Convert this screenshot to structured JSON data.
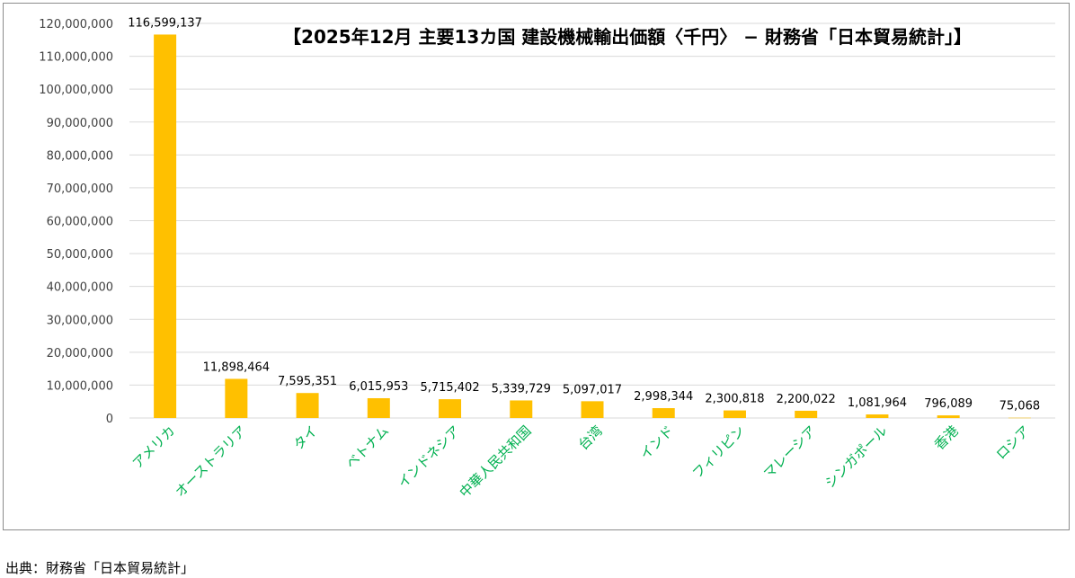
{
  "chart_data": {
    "type": "bar",
    "title": "【2025年12月 主要13カ国 建設機械輸出価額〈千円〉 − 財務省「日本貿易統計」】",
    "categories": [
      "アメリカ",
      "オーストラリア",
      "タイ",
      "ベトナム",
      "インドネシア",
      "中華人民共和国",
      "台湾",
      "インド",
      "フィリピン",
      "マレーシア",
      "シンガポール",
      "香港",
      "ロシア"
    ],
    "values": [
      116599137,
      11898464,
      7595351,
      6015953,
      5715402,
      5339729,
      5097017,
      2998344,
      2300818,
      2200022,
      1081964,
      796089,
      75068
    ],
    "value_labels": [
      "116,599,137",
      "11,898,464",
      "7,595,351",
      "6,015,953",
      "5,715,402",
      "5,339,729",
      "5,097,017",
      "2,998,344",
      "2,300,818",
      "2,200,022",
      "1,081,964",
      "796,089",
      "75,068"
    ],
    "ylim": [
      0,
      120000000
    ],
    "yticks": [
      0,
      10000000,
      20000000,
      30000000,
      40000000,
      50000000,
      60000000,
      70000000,
      80000000,
      90000000,
      100000000,
      110000000,
      120000000
    ],
    "ytick_labels": [
      "0",
      "10,000,000",
      "20,000,000",
      "30,000,000",
      "40,000,000",
      "50,000,000",
      "60,000,000",
      "70,000,000",
      "80,000,000",
      "90,000,000",
      "100,000,000",
      "110,000,000",
      "120,000,000"
    ],
    "xlabel": "",
    "ylabel": "",
    "grid": true,
    "legend": "none",
    "colors": {
      "bar": "#FFC000",
      "category_label": "#00B050",
      "gridline": "#D9D9D9",
      "axis_text": "#404040",
      "title": "#000000"
    }
  },
  "source_note": "出典：財務省「日本貿易統計」"
}
